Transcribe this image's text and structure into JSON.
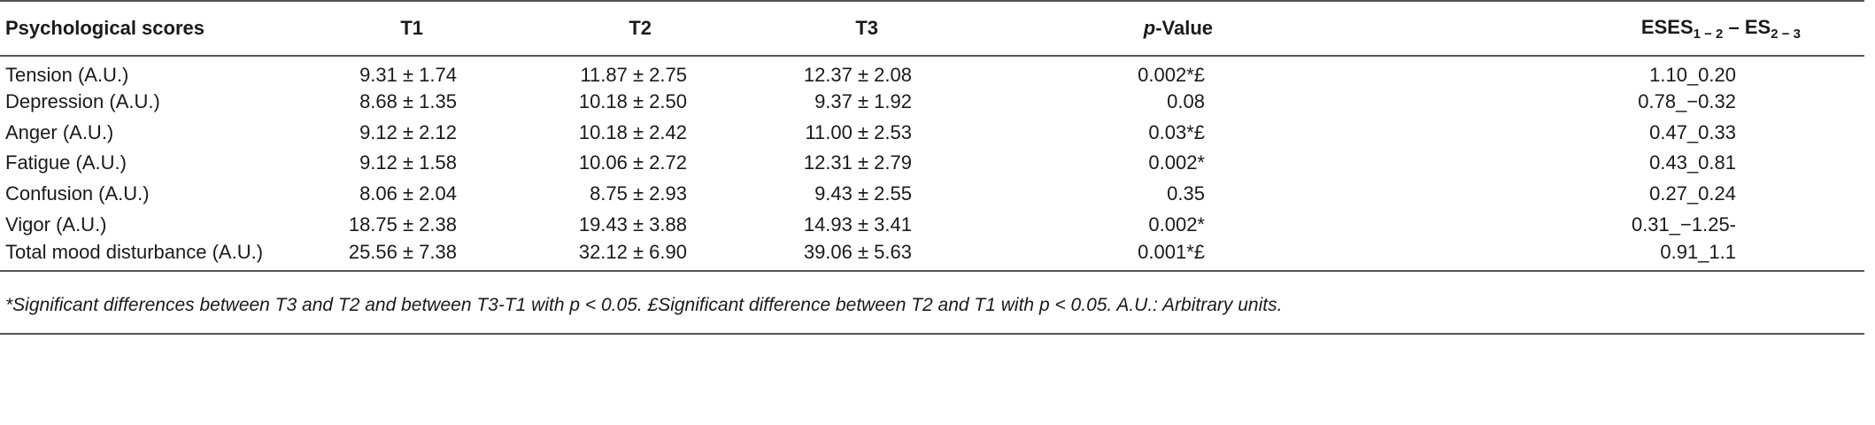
{
  "table": {
    "headers": {
      "label": "Psychological scores",
      "t1": "T1",
      "t2": "T2",
      "t3": "T3",
      "p_italic": "p",
      "p_rest": "-Value",
      "es_a": "ESES",
      "es_sub1": "1 − 2",
      "es_mid": " – ES",
      "es_sub2": "2 − 3"
    },
    "rows": [
      {
        "label": "Tension (A.U.)",
        "t1": "9.31 ± 1.74",
        "t2": "11.87 ± 2.75",
        "t3": "12.37 ± 2.08",
        "p": "0.002*£",
        "es": "1.10_0.20"
      },
      {
        "label": "Depression (A.U.)",
        "t1": "8.68 ± 1.35",
        "t2": "10.18 ± 2.50",
        "t3": "9.37 ± 1.92",
        "p": "0.08",
        "es": "0.78_−0.32"
      },
      {
        "label": "Anger (A.U.)",
        "t1": "9.12 ± 2.12",
        "t2": "10.18 ± 2.42",
        "t3": "11.00 ± 2.53",
        "p": "0.03*£",
        "es": "0.47_0.33"
      },
      {
        "label": "Fatigue (A.U.)",
        "t1": "9.12 ± 1.58",
        "t2": "10.06 ± 2.72",
        "t3": "12.31 ± 2.79",
        "p": "0.002*",
        "es": "0.43_0.81"
      },
      {
        "label": "Confusion (A.U.)",
        "t1": "8.06 ± 2.04",
        "t2": "8.75 ± 2.93",
        "t3": "9.43 ± 2.55",
        "p": "0.35",
        "es": "0.27_0.24"
      },
      {
        "label": "Vigor (A.U.)",
        "t1": "18.75 ± 2.38",
        "t2": "19.43 ± 3.88",
        "t3": "14.93 ± 3.41",
        "p": "0.002*",
        "es": "0.31_−1.25-"
      },
      {
        "label": "Total mood disturbance (A.U.)",
        "t1": "25.56 ± 7.38",
        "t2": "32.12 ± 6.90",
        "t3": "39.06 ± 5.63",
        "p": "0.001*£",
        "es": "0.91_1.1"
      }
    ],
    "footnote": "*Significant differences between T3 and T2 and between T3-T1 with p < 0.05. £Significant difference between T2 and T1 with p < 0.05. A.U.: Arbitrary units."
  }
}
